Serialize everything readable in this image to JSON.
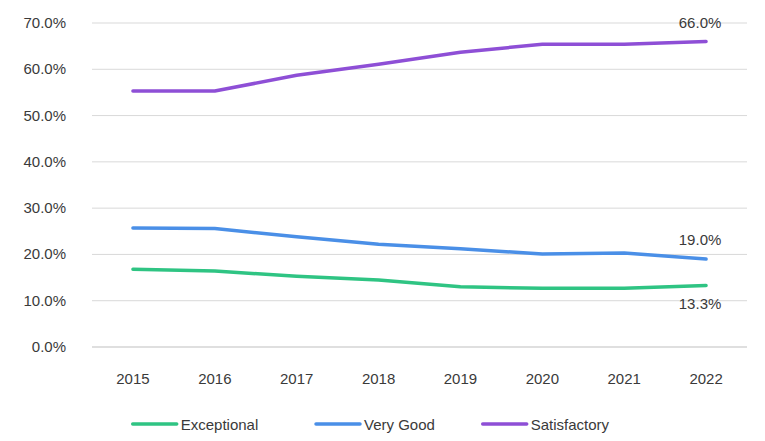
{
  "chart_data": {
    "type": "line",
    "categories": [
      "2015",
      "2016",
      "2017",
      "2018",
      "2019",
      "2020",
      "2021",
      "2022"
    ],
    "series": [
      {
        "name": "Exceptional",
        "color": "#2fc483",
        "values": [
          16.8,
          16.4,
          15.3,
          14.5,
          13.0,
          12.7,
          12.7,
          13.3
        ]
      },
      {
        "name": "Very Good",
        "color": "#4a8fe7",
        "values": [
          25.7,
          25.6,
          23.8,
          22.2,
          21.2,
          20.1,
          20.3,
          19.0
        ]
      },
      {
        "name": "Satisfactory",
        "color": "#8e4fd6",
        "values": [
          55.3,
          55.3,
          58.7,
          61.1,
          63.7,
          65.4,
          65.4,
          66.0
        ]
      }
    ],
    "annotations": [
      {
        "x": "2022",
        "y": 66.0,
        "text": "66.0%"
      },
      {
        "x": "2022",
        "y": 19.0,
        "text": "19.0%"
      },
      {
        "x": "2022",
        "y": 13.3,
        "text": "13.3%"
      }
    ],
    "ylim": [
      0,
      70
    ],
    "yticks": [
      {
        "value": 0,
        "label": "0.0%"
      },
      {
        "value": 10,
        "label": "10.0%"
      },
      {
        "value": 20,
        "label": "20.0%"
      },
      {
        "value": 30,
        "label": "30.0%"
      },
      {
        "value": 40,
        "label": "40.0%"
      },
      {
        "value": 50,
        "label": "50.0%"
      },
      {
        "value": 60,
        "label": "60.0%"
      },
      {
        "value": 70,
        "label": "70.0%"
      }
    ],
    "grid": true,
    "legend": "bottom"
  }
}
